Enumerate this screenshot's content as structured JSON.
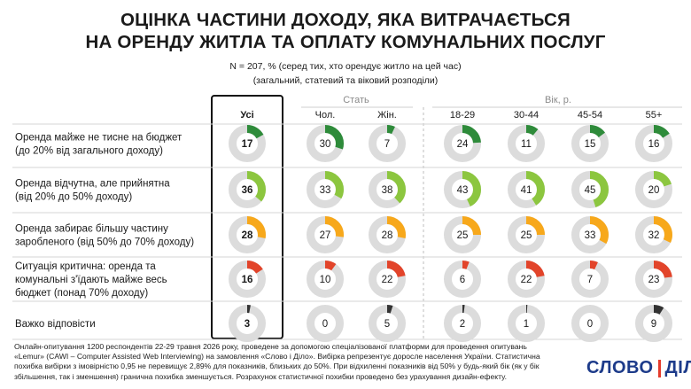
{
  "title_lines": [
    "ОЦІНКА ЧАСТИНИ ДОХОДУ, ЯКА ВИТРАЧАЄТЬСЯ",
    "НА ОРЕНДУ ЖИТЛА ТА ОПЛАТУ КОМУНАЛЬНИХ ПОСЛУГ"
  ],
  "subtitle_lines": [
    "N = 207, % (серед тих, хто орендує житло на цей час)",
    "(загальний, статевий та віковий розподіли)"
  ],
  "footer": "Онлайн-опитування 1200 респондентів 22-29 травня 2026 року, проведене за допомогою спеціалізованої платформи для проведення опитувань «Lemur» (CAWI – Computer Assisted Web Interviewing) на замовлення «Слово і Діло». Вибірка репрезентує доросле населення України. Статистична похибка вибірки з імовірністю 0,95 не перевищує 2,89% для показників, близьких до 50%. При відхиленні показників від 50% у будь-який бік (як у бік збільшення, так і зменшення) гранична похибка зменшується. Розрахунок статистичної похибки проведено без урахування дизайн-ефекту.",
  "logo": {
    "left": "СЛОВО",
    "right": "ДІЛО"
  },
  "colors": {
    "track": "#dcdcdc",
    "very_good": "#2e8b3a",
    "good": "#8cc63f",
    "medium": "#f7a81b",
    "bad": "#e2442a",
    "dont_know": "#333333"
  },
  "chart_data": {
    "type": "donut-grid",
    "group_headers": [
      {
        "label": "Стать",
        "first_col": 1,
        "last_col": 2
      },
      {
        "label": "Вік, р.",
        "first_col": 3,
        "last_col": 6
      }
    ],
    "columns": [
      "Усі",
      "Чол.",
      "Жін.",
      "18-29",
      "30-44",
      "45-54",
      "55+"
    ],
    "rows": [
      {
        "label_lines": [
          "Оренда майже не тисне на бюджет",
          "(до 20% від загального доходу)"
        ],
        "color": "#2e8b3a",
        "values": [
          17,
          30,
          7,
          24,
          11,
          15,
          16
        ]
      },
      {
        "label_lines": [
          "Оренда відчутна, але прийнятна",
          "(від 20% до 50% доходу)"
        ],
        "color": "#8cc63f",
        "values": [
          36,
          33,
          38,
          43,
          41,
          45,
          20
        ]
      },
      {
        "label_lines": [
          "Оренда забирає більшу частину",
          "заробленого (від 50% до 70% доходу)"
        ],
        "color": "#f7a81b",
        "values": [
          28,
          27,
          28,
          25,
          25,
          33,
          32
        ]
      },
      {
        "label_lines": [
          "Ситуація критична: оренда та",
          "комунальні з'їдають майже весь",
          "бюджет (понад 70% доходу)"
        ],
        "color": "#e2442a",
        "values": [
          16,
          10,
          22,
          6,
          22,
          7,
          23
        ]
      },
      {
        "label_lines": [
          "Важко відповісти"
        ],
        "color": "#333333",
        "values": [
          3,
          0,
          5,
          2,
          1,
          0,
          9
        ]
      }
    ],
    "unit": "%"
  }
}
